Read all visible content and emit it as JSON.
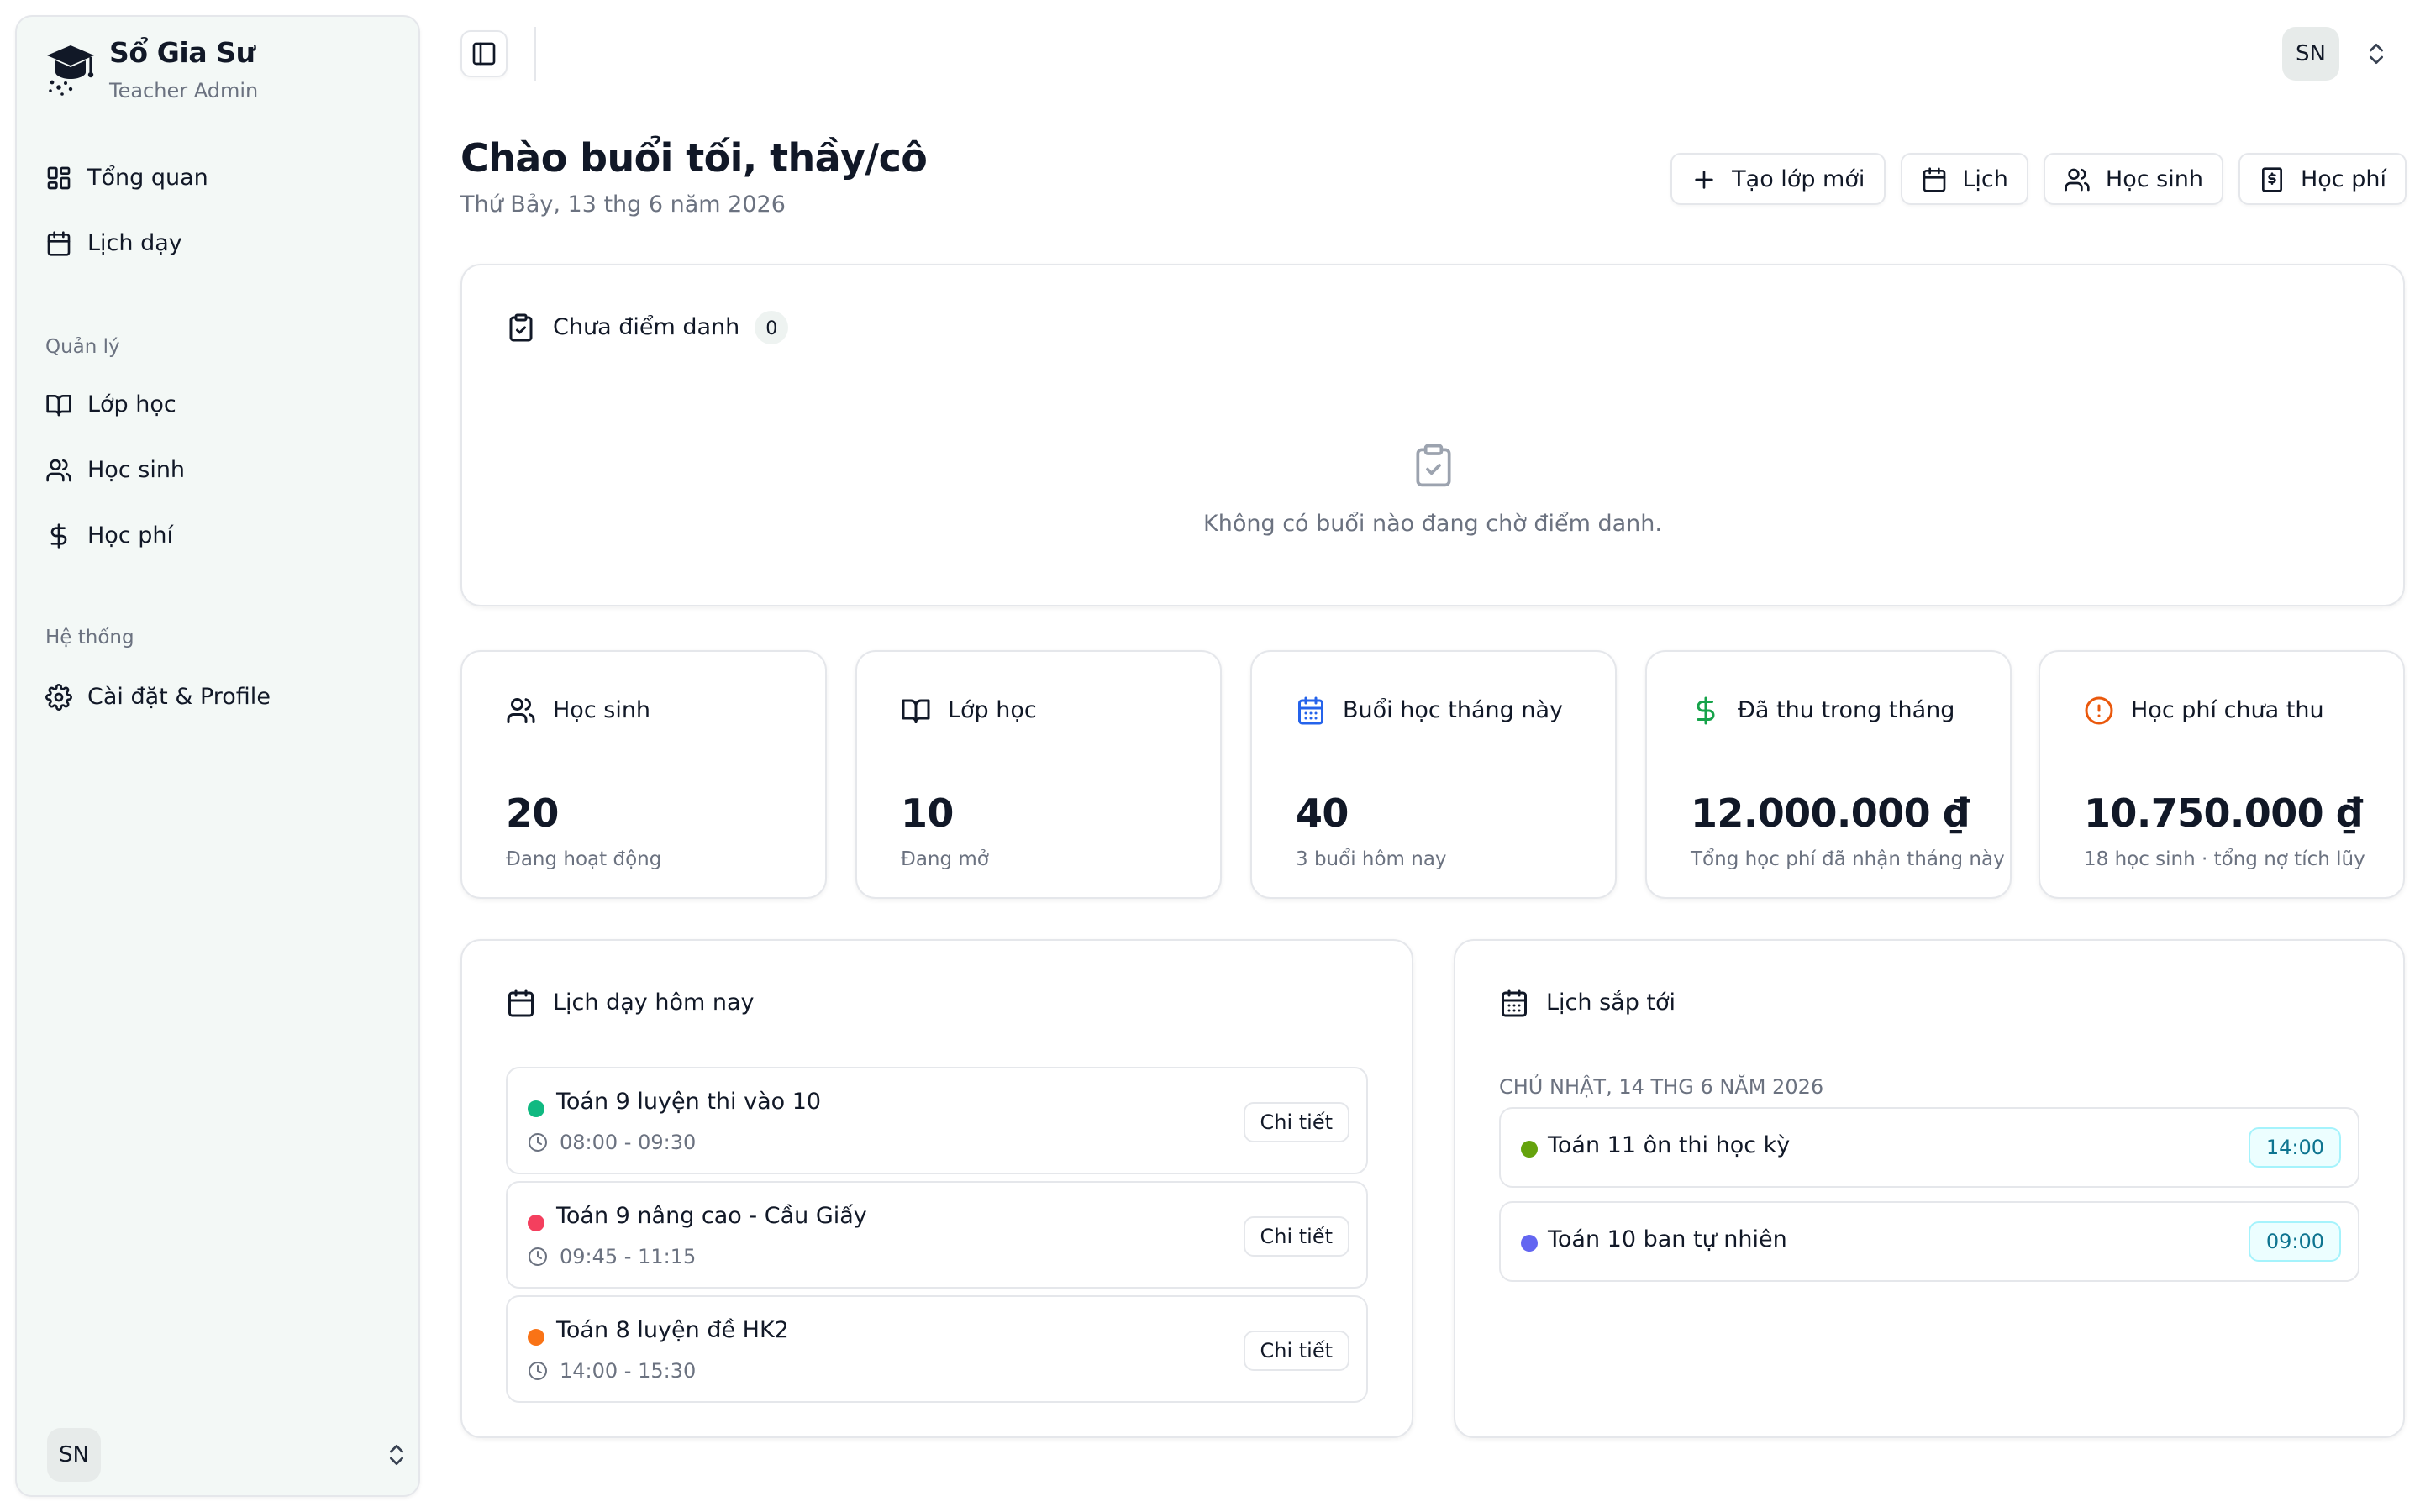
{
  "brand": {
    "name": "Sổ Gia Sư",
    "subtitle": "Teacher Admin"
  },
  "sidebar": {
    "top_items": [
      {
        "label": "Tổng quan",
        "icon": "dashboard-icon"
      },
      {
        "label": "Lịch dạy",
        "icon": "calendar-icon"
      }
    ],
    "groups": [
      {
        "label": "Quản lý",
        "items": [
          {
            "label": "Lớp học",
            "icon": "book-icon"
          },
          {
            "label": "Học sinh",
            "icon": "users-icon"
          },
          {
            "label": "Học phí",
            "icon": "dollar-icon"
          }
        ]
      },
      {
        "label": "Hệ thống",
        "items": [
          {
            "label": "Cài đặt & Profile",
            "icon": "gear-icon"
          }
        ]
      }
    ],
    "user_initials": "SN"
  },
  "topbar": {
    "user_initials": "SN"
  },
  "header": {
    "greeting": "Chào buổi tối, thầy/cô",
    "date": "Thứ Bảy, 13 thg 6 năm 2026",
    "actions": [
      {
        "label": "Tạo lớp mới",
        "icon": "plus-icon"
      },
      {
        "label": "Lịch",
        "icon": "calendar-icon"
      },
      {
        "label": "Học sinh",
        "icon": "users-icon"
      },
      {
        "label": "Học phí",
        "icon": "receipt-icon"
      }
    ]
  },
  "attendance": {
    "title": "Chưa điểm danh",
    "count": "0",
    "empty_text": "Không có buổi nào đang chờ điểm danh."
  },
  "stats": [
    {
      "label": "Học sinh",
      "value": "20",
      "sub": "Đang hoạt động",
      "icon": "users-icon",
      "color": "#111827"
    },
    {
      "label": "Lớp học",
      "value": "10",
      "sub": "Đang mở",
      "icon": "book-icon",
      "color": "#111827"
    },
    {
      "label": "Buổi học tháng này",
      "value": "40",
      "sub": "3 buổi hôm nay",
      "icon": "calendar-days-icon",
      "color": "#2563eb"
    },
    {
      "label": "Đã thu trong tháng",
      "value": "12.000.000 ₫",
      "sub": "Tổng học phí đã nhận tháng này",
      "icon": "dollar-icon",
      "color": "#16a34a"
    },
    {
      "label": "Học phí chưa thu",
      "value": "10.750.000 ₫",
      "sub": "18 học sinh · tổng nợ tích lũy",
      "icon": "alert-circle-icon",
      "color": "#ea580c"
    }
  ],
  "today": {
    "title": "Lịch dạy hôm nay",
    "sessions": [
      {
        "name": "Toán 9 luyện thi vào 10",
        "time": "08:00 - 09:30",
        "color": "#10b981",
        "action": "Chi tiết"
      },
      {
        "name": "Toán 9 nâng cao - Cầu Giấy",
        "time": "09:45 - 11:15",
        "color": "#f43f5e",
        "action": "Chi tiết"
      },
      {
        "name": "Toán 8 luyện đề HK2",
        "time": "14:00 - 15:30",
        "color": "#f97316",
        "action": "Chi tiết"
      }
    ]
  },
  "upcoming": {
    "title": "Lịch sắp tới",
    "date": "Chủ Nhật, 14 thg 6 năm 2026",
    "items": [
      {
        "name": "Toán 11 ôn thi học kỳ",
        "time": "14:00",
        "color": "#65a30d",
        "badge_bg": "#ecfeff",
        "badge_border": "#a5f3fc",
        "badge_text": "#0e7490"
      },
      {
        "name": "Toán 10 ban tự nhiên",
        "time": "09:00",
        "color": "#6366f1",
        "badge_bg": "#ecfeff",
        "badge_border": "#a5f3fc",
        "badge_text": "#0e7490"
      }
    ]
  }
}
